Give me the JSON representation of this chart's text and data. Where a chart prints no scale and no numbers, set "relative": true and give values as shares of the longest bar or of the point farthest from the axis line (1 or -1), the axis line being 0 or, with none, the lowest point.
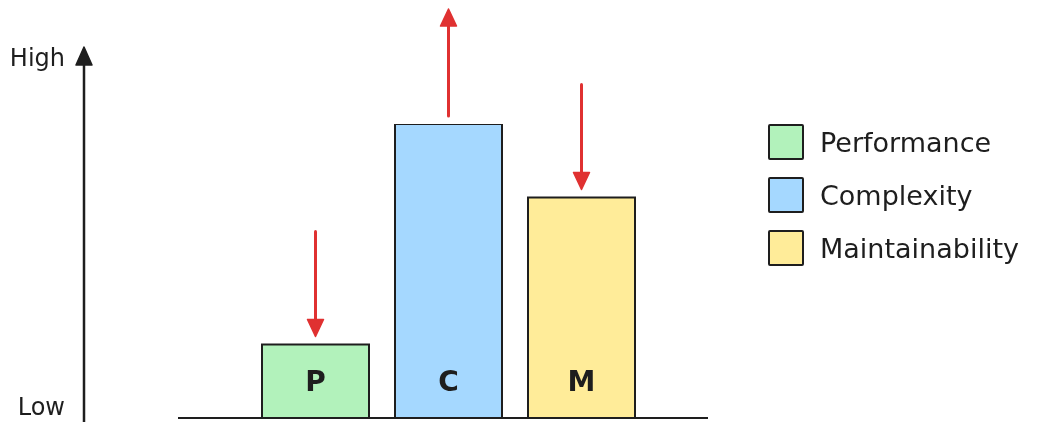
{
  "chart_data": {
    "type": "bar",
    "categories": [
      "P",
      "C",
      "M"
    ],
    "relative": true,
    "series": [
      {
        "name": "Performance",
        "color": "#b2f2bb",
        "values": [
          0.25,
          null,
          null
        ]
      },
      {
        "name": "Complexity",
        "color": "#a5d8ff",
        "values": [
          null,
          1,
          null
        ]
      },
      {
        "name": "Maintainability",
        "color": "#ffec99",
        "values": [
          null,
          null,
          0.75
        ]
      }
    ],
    "legend": "right",
    "annotations": [
      "High",
      "Low"
    ]
  }
}
